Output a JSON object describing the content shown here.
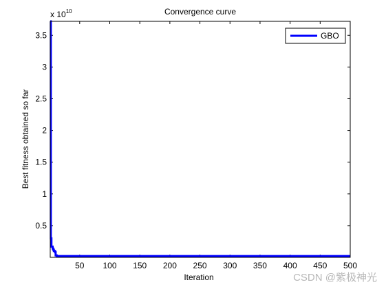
{
  "chart_data": {
    "type": "line",
    "title": "Convergence curve",
    "xlabel": "Iteration",
    "ylabel": "Best fitness obtained so far",
    "y_scale_exponent_label": {
      "base": "x 10",
      "exponent": "10"
    },
    "xlim": [
      1,
      500
    ],
    "ylim": [
      0,
      3.72
    ],
    "x_ticks": [
      50,
      100,
      150,
      200,
      250,
      300,
      350,
      400,
      450,
      500
    ],
    "x_tick_labels": [
      "50",
      "100",
      "150",
      "200",
      "250",
      "300",
      "350",
      "400",
      "450",
      "500"
    ],
    "y_ticks": [
      0.5,
      1,
      1.5,
      2,
      2.5,
      3,
      3.5
    ],
    "y_tick_labels": [
      "0.5",
      "1",
      "1.5",
      "2",
      "2.5",
      "3",
      "3.5"
    ],
    "legend_position": "top-right",
    "grid": false,
    "series": [
      {
        "name": "GBO",
        "color": "#0000ff",
        "x": [
          1,
          2,
          3,
          5,
          6,
          7,
          9,
          10,
          12,
          100,
          500
        ],
        "y": [
          3.72,
          0.3,
          0.17,
          0.14,
          0.12,
          0.1,
          0.08,
          0.03,
          0.02,
          0.02,
          0.02
        ]
      }
    ]
  },
  "watermark": "CSDN @紫极神光"
}
